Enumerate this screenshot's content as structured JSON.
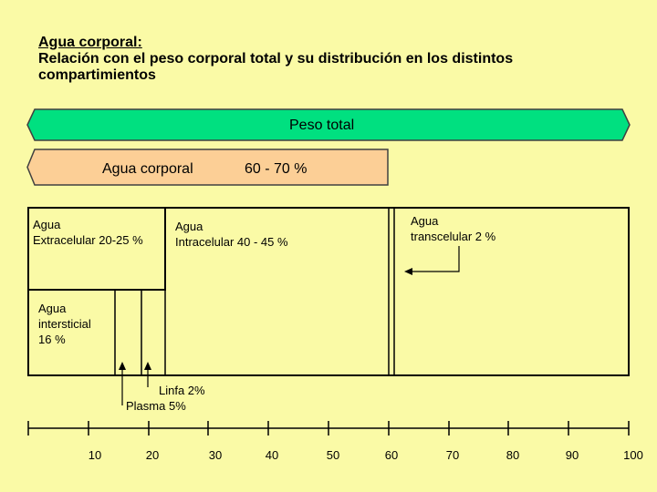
{
  "title": {
    "heading": "Agua corporal:",
    "line1": "Relación con el peso corporal total y su distribución en los distintos",
    "line2": "compartimientos"
  },
  "peso_total": {
    "label": "Peso total",
    "color": "#00e080"
  },
  "agua_corporal": {
    "label": "Agua corporal",
    "range": "60 - 70 %",
    "color": "#fccf96"
  },
  "compartments": {
    "extracelular": {
      "line1": "Agua",
      "line2": "Extracelular 20-25 %"
    },
    "intracelular": {
      "line1": "Agua",
      "line2": "Intracelular 40 - 45 %"
    },
    "transcelular": {
      "line1": "Agua",
      "line2": "transcelular 2 %"
    },
    "intersticial": {
      "line1": "Agua",
      "line2": "intersticial",
      "line3": "16 %"
    },
    "linfa": "Linfa 2%",
    "plasma": "Plasma 5%"
  },
  "scale": {
    "ticks": [
      "10",
      "20",
      "30",
      "40",
      "50",
      "60",
      "70",
      "80",
      "90",
      "100"
    ]
  }
}
